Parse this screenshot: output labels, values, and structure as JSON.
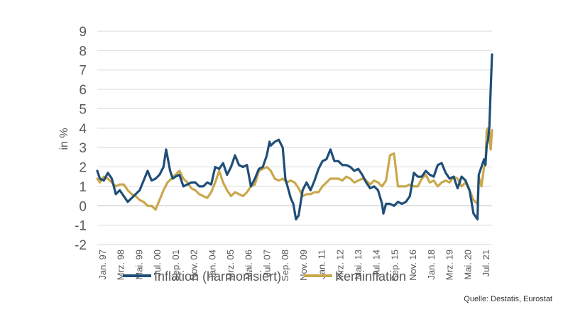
{
  "chart_data": {
    "type": "line",
    "ylabel": "in %",
    "ylim": [
      -2,
      9
    ],
    "yticks": [
      9,
      8,
      7,
      6,
      5,
      4,
      3,
      2,
      1,
      0,
      -1,
      -2
    ],
    "grid": true,
    "legend_placement": "bottom",
    "x_tick_labels": [
      "Jan. 97",
      "Mrz. 98",
      "Mai. 99",
      "Jul. 00",
      "Sep. 01",
      "Nov. 02",
      "Jan. 04",
      "Mrz. 05",
      "Mai. 06",
      "Jul. 07",
      "Sep. 08",
      "Nov. 09",
      "Jan. 11",
      "Mrz. 12",
      "Mai. 13",
      "Jul. 14",
      "Sep. 15",
      "Nov. 16",
      "Jan. 18",
      "Mrz. 19",
      "Mai. 20",
      "Jul. 21"
    ],
    "x_range": [
      "1997-01",
      "2021-11"
    ],
    "series": [
      {
        "name": "Inflation (harmonisiert)",
        "color": "#1f4e79",
        "points": [
          [
            "1997-01",
            1.8
          ],
          [
            "1997-03",
            1.4
          ],
          [
            "1997-06",
            1.3
          ],
          [
            "1997-09",
            1.7
          ],
          [
            "1997-12",
            1.4
          ],
          [
            "1998-03",
            0.6
          ],
          [
            "1998-06",
            0.8
          ],
          [
            "1998-09",
            0.5
          ],
          [
            "1998-12",
            0.2
          ],
          [
            "1999-03",
            0.4
          ],
          [
            "1999-06",
            0.6
          ],
          [
            "1999-09",
            0.8
          ],
          [
            "1999-12",
            1.3
          ],
          [
            "2000-03",
            1.8
          ],
          [
            "2000-06",
            1.3
          ],
          [
            "2000-09",
            1.4
          ],
          [
            "2000-12",
            1.6
          ],
          [
            "2001-03",
            2.0
          ],
          [
            "2001-05",
            2.9
          ],
          [
            "2001-08",
            1.8
          ],
          [
            "2001-10",
            1.4
          ],
          [
            "2001-12",
            1.5
          ],
          [
            "2002-03",
            1.6
          ],
          [
            "2002-06",
            1.0
          ],
          [
            "2002-09",
            1.1
          ],
          [
            "2002-12",
            1.2
          ],
          [
            "2003-03",
            1.2
          ],
          [
            "2003-06",
            1.0
          ],
          [
            "2003-09",
            1.0
          ],
          [
            "2003-12",
            1.2
          ],
          [
            "2004-03",
            1.1
          ],
          [
            "2004-06",
            2.0
          ],
          [
            "2004-09",
            1.9
          ],
          [
            "2004-12",
            2.2
          ],
          [
            "2005-03",
            1.6
          ],
          [
            "2005-06",
            2.0
          ],
          [
            "2005-09",
            2.6
          ],
          [
            "2005-12",
            2.1
          ],
          [
            "2006-03",
            2.0
          ],
          [
            "2006-06",
            2.1
          ],
          [
            "2006-09",
            1.0
          ],
          [
            "2006-12",
            1.4
          ],
          [
            "2007-03",
            1.9
          ],
          [
            "2007-06",
            2.0
          ],
          [
            "2007-09",
            2.6
          ],
          [
            "2007-11",
            3.3
          ],
          [
            "2007-12",
            3.1
          ],
          [
            "2008-03",
            3.3
          ],
          [
            "2008-06",
            3.4
          ],
          [
            "2008-09",
            3.0
          ],
          [
            "2008-11",
            1.4
          ],
          [
            "2009-01",
            0.9
          ],
          [
            "2009-03",
            0.4
          ],
          [
            "2009-05",
            0.1
          ],
          [
            "2009-07",
            -0.7
          ],
          [
            "2009-09",
            -0.5
          ],
          [
            "2009-12",
            0.8
          ],
          [
            "2010-03",
            1.2
          ],
          [
            "2010-06",
            0.8
          ],
          [
            "2010-09",
            1.3
          ],
          [
            "2010-12",
            1.9
          ],
          [
            "2011-03",
            2.3
          ],
          [
            "2011-06",
            2.4
          ],
          [
            "2011-09",
            2.9
          ],
          [
            "2011-12",
            2.3
          ],
          [
            "2012-03",
            2.3
          ],
          [
            "2012-06",
            2.1
          ],
          [
            "2012-09",
            2.1
          ],
          [
            "2012-12",
            2.0
          ],
          [
            "2013-03",
            1.8
          ],
          [
            "2013-06",
            1.9
          ],
          [
            "2013-09",
            1.6
          ],
          [
            "2013-12",
            1.2
          ],
          [
            "2014-03",
            0.9
          ],
          [
            "2014-06",
            1.0
          ],
          [
            "2014-09",
            0.8
          ],
          [
            "2014-12",
            0.1
          ],
          [
            "2015-01",
            -0.4
          ],
          [
            "2015-03",
            0.1
          ],
          [
            "2015-06",
            0.1
          ],
          [
            "2015-09",
            0.0
          ],
          [
            "2015-12",
            0.2
          ],
          [
            "2016-03",
            0.1
          ],
          [
            "2016-06",
            0.2
          ],
          [
            "2016-09",
            0.5
          ],
          [
            "2016-12",
            1.7
          ],
          [
            "2017-03",
            1.5
          ],
          [
            "2017-06",
            1.5
          ],
          [
            "2017-09",
            1.8
          ],
          [
            "2017-12",
            1.6
          ],
          [
            "2018-03",
            1.5
          ],
          [
            "2018-06",
            2.1
          ],
          [
            "2018-09",
            2.2
          ],
          [
            "2018-12",
            1.7
          ],
          [
            "2019-03",
            1.4
          ],
          [
            "2019-06",
            1.5
          ],
          [
            "2019-09",
            0.9
          ],
          [
            "2019-12",
            1.5
          ],
          [
            "2020-03",
            1.3
          ],
          [
            "2020-06",
            0.8
          ],
          [
            "2020-09",
            -0.4
          ],
          [
            "2020-12",
            -0.7
          ],
          [
            "2021-01",
            1.6
          ],
          [
            "2021-03",
            2.0
          ],
          [
            "2021-05",
            2.4
          ],
          [
            "2021-06",
            2.1
          ],
          [
            "2021-07",
            3.1
          ],
          [
            "2021-08",
            3.4
          ],
          [
            "2021-09",
            4.1
          ],
          [
            "2021-10",
            6.0
          ],
          [
            "2021-11",
            7.8
          ]
        ]
      },
      {
        "name": "Kerninflation",
        "color": "#c9a84c",
        "points": [
          [
            "1997-01",
            1.4
          ],
          [
            "1997-03",
            1.2
          ],
          [
            "1997-06",
            1.5
          ],
          [
            "1997-09",
            1.4
          ],
          [
            "1997-12",
            1.2
          ],
          [
            "1998-03",
            1.0
          ],
          [
            "1998-06",
            1.1
          ],
          [
            "1998-09",
            1.1
          ],
          [
            "1998-12",
            0.8
          ],
          [
            "1999-03",
            0.6
          ],
          [
            "1999-06",
            0.5
          ],
          [
            "1999-09",
            0.3
          ],
          [
            "1999-12",
            0.2
          ],
          [
            "2000-03",
            0.0
          ],
          [
            "2000-06",
            0.0
          ],
          [
            "2000-09",
            -0.2
          ],
          [
            "2000-12",
            0.3
          ],
          [
            "2001-03",
            0.8
          ],
          [
            "2001-06",
            1.2
          ],
          [
            "2001-09",
            1.4
          ],
          [
            "2001-12",
            1.6
          ],
          [
            "2002-03",
            1.8
          ],
          [
            "2002-06",
            1.4
          ],
          [
            "2002-09",
            1.2
          ],
          [
            "2002-12",
            0.9
          ],
          [
            "2003-03",
            0.8
          ],
          [
            "2003-06",
            0.6
          ],
          [
            "2003-09",
            0.5
          ],
          [
            "2003-12",
            0.4
          ],
          [
            "2004-03",
            0.7
          ],
          [
            "2004-06",
            1.2
          ],
          [
            "2004-09",
            1.8
          ],
          [
            "2004-12",
            1.2
          ],
          [
            "2005-03",
            0.8
          ],
          [
            "2005-06",
            0.5
          ],
          [
            "2005-09",
            0.7
          ],
          [
            "2005-12",
            0.6
          ],
          [
            "2006-03",
            0.5
          ],
          [
            "2006-06",
            0.7
          ],
          [
            "2006-09",
            1.0
          ],
          [
            "2006-12",
            1.1
          ],
          [
            "2007-03",
            1.8
          ],
          [
            "2007-06",
            1.9
          ],
          [
            "2007-09",
            2.0
          ],
          [
            "2007-12",
            1.8
          ],
          [
            "2008-03",
            1.4
          ],
          [
            "2008-06",
            1.3
          ],
          [
            "2008-09",
            1.4
          ],
          [
            "2008-12",
            1.2
          ],
          [
            "2009-03",
            1.3
          ],
          [
            "2009-06",
            1.2
          ],
          [
            "2009-09",
            0.9
          ],
          [
            "2009-12",
            0.5
          ],
          [
            "2010-03",
            0.6
          ],
          [
            "2010-06",
            0.6
          ],
          [
            "2010-09",
            0.7
          ],
          [
            "2010-12",
            0.7
          ],
          [
            "2011-03",
            1.0
          ],
          [
            "2011-06",
            1.2
          ],
          [
            "2011-09",
            1.4
          ],
          [
            "2011-12",
            1.4
          ],
          [
            "2012-03",
            1.4
          ],
          [
            "2012-06",
            1.3
          ],
          [
            "2012-09",
            1.5
          ],
          [
            "2012-12",
            1.4
          ],
          [
            "2013-03",
            1.2
          ],
          [
            "2013-06",
            1.3
          ],
          [
            "2013-09",
            1.4
          ],
          [
            "2013-12",
            1.3
          ],
          [
            "2014-03",
            1.1
          ],
          [
            "2014-06",
            1.3
          ],
          [
            "2014-09",
            1.2
          ],
          [
            "2014-12",
            1.0
          ],
          [
            "2015-03",
            1.3
          ],
          [
            "2015-06",
            2.6
          ],
          [
            "2015-09",
            2.7
          ],
          [
            "2015-12",
            1.0
          ],
          [
            "2016-03",
            1.0
          ],
          [
            "2016-06",
            1.0
          ],
          [
            "2016-09",
            1.1
          ],
          [
            "2016-12",
            1.0
          ],
          [
            "2017-03",
            1.0
          ],
          [
            "2017-06",
            1.4
          ],
          [
            "2017-09",
            1.6
          ],
          [
            "2017-12",
            1.2
          ],
          [
            "2018-03",
            1.3
          ],
          [
            "2018-06",
            1.0
          ],
          [
            "2018-09",
            1.2
          ],
          [
            "2018-12",
            1.3
          ],
          [
            "2019-03",
            1.2
          ],
          [
            "2019-06",
            1.5
          ],
          [
            "2019-09",
            1.4
          ],
          [
            "2019-12",
            1.0
          ],
          [
            "2020-03",
            1.2
          ],
          [
            "2020-06",
            0.8
          ],
          [
            "2020-09",
            0.3
          ],
          [
            "2020-12",
            0.1
          ],
          [
            "2021-01",
            1.5
          ],
          [
            "2021-03",
            1.0
          ],
          [
            "2021-05",
            2.0
          ],
          [
            "2021-06",
            2.1
          ],
          [
            "2021-07",
            3.9
          ],
          [
            "2021-08",
            4.0
          ],
          [
            "2021-09",
            3.8
          ],
          [
            "2021-10",
            2.9
          ],
          [
            "2021-11",
            3.9
          ]
        ]
      }
    ]
  },
  "source": "Quelle:  Destatis, Eurostat"
}
